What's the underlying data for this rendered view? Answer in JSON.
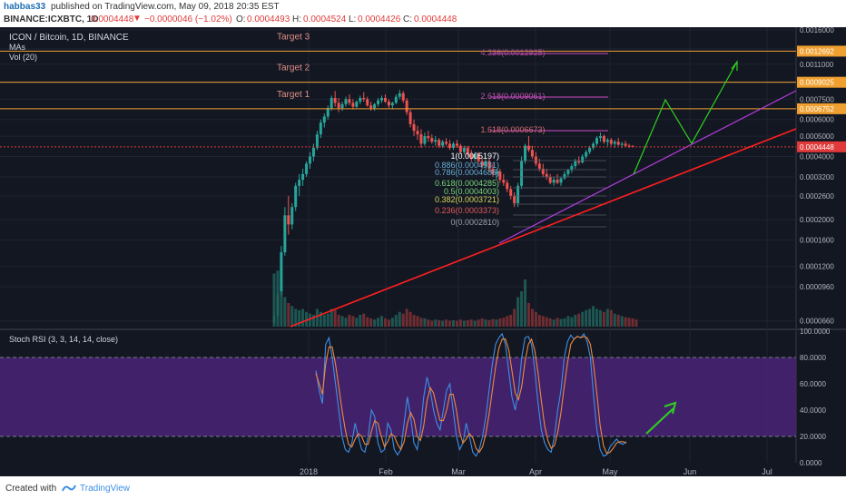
{
  "header": {
    "author": "habbas33",
    "published_text": "published on TradingView.com, May 09, 2018 20:35 EST",
    "symbol": "BINANCE:ICXBTC, 1D",
    "last": "0.0004448",
    "change_arrow": "▼",
    "change": "−0.0000046 (−1.02%)",
    "o_label": "O:",
    "o": "0.0004493",
    "h_label": "H:",
    "h": "0.0004524",
    "l_label": "L:",
    "l": "0.0004426",
    "c_label": "C:",
    "c": "0.0004448"
  },
  "legend": {
    "title": "ICON / Bitcoin, 1D, BINANCE",
    "mas": "MAs",
    "vol": "Vol (20)",
    "rsi": "Stoch RSI (3, 3, 14, 14, close)"
  },
  "footer": {
    "created_with": "Created with",
    "brand": "TradingView"
  },
  "colors": {
    "background": "#131722",
    "grid": "#1f2333",
    "up": "#26a69a",
    "down": "#ef5350",
    "target_line": "#f0a030",
    "trend_red": "#ff1f1f",
    "trend_purple": "#b43cdc",
    "projection": "#2ed11e",
    "k_line": "#3d8fe6",
    "d_line": "#f0883a",
    "rsi_band": "#4a2577",
    "last_price": "#e03a3a"
  },
  "chart_data": [
    {
      "type": "candlestick",
      "title": "ICON / Bitcoin, 1D, BINANCE",
      "x_ticks": [
        "2018",
        "Feb",
        "Mar",
        "Apr",
        "May",
        "Jun",
        "Jul"
      ],
      "y_ticks": [
        "0.0016000",
        "0.0013000",
        "0.0011000",
        "0.0009000",
        "0.0007500",
        "0.0006000",
        "0.0005000",
        "0.0004000",
        "0.0003200",
        "0.0002600",
        "0.0002000",
        "0.0001600",
        "0.0001200",
        "0.0000960",
        "0.0000660"
      ],
      "scale": "log",
      "price_markers": [
        {
          "value": "0.0012692",
          "label": "0.0012692"
        },
        {
          "value": "0.0009025",
          "label": "0.0009025"
        },
        {
          "value": "0.0006752",
          "label": "0.0006752"
        },
        {
          "value": "0.0004448",
          "label": "0.0004448"
        }
      ],
      "targets": [
        {
          "name": "Target 3",
          "value": 0.0012692
        },
        {
          "name": "Target 2",
          "value": 0.0009025
        },
        {
          "name": "Target 1",
          "value": 0.0006752
        }
      ],
      "fib_extension_labels": [
        "4.236(0.0012925)",
        "2.618(0.0009061)",
        "1.618(0.0006673)"
      ],
      "fib_retracement_labels": [
        "1(0.0005197)",
        "0.886(0.0004931)",
        "0.786(0.0004686)",
        "0.618(0.0004285)",
        "0.5(0.0004003)",
        "0.382(0.0003721)",
        "0.236(0.0003373)",
        "0(0.0002810)"
      ],
      "candles": [
        [
          6.5e-05,
          7.2e-05,
          6.4e-05,
          7e-05
        ],
        [
          7e-05,
          9e-05,
          6.9e-05,
          8.8e-05
        ],
        [
          8.8e-05,
          0.00015,
          8.6e-05,
          0.00014
        ],
        [
          0.00014,
          0.00023,
          0.000135,
          0.00021
        ],
        [
          0.00021,
          0.00026,
          0.00017,
          0.00019
        ],
        [
          0.00019,
          0.00024,
          0.00018,
          0.00023
        ],
        [
          0.00023,
          0.0003,
          0.00022,
          0.00029
        ],
        [
          0.00029,
          0.00033,
          0.00026,
          0.00031
        ],
        [
          0.00031,
          0.00035,
          0.00029,
          0.00033
        ],
        [
          0.00033,
          0.00038,
          0.00032,
          0.00037
        ],
        [
          0.00037,
          0.00042,
          0.00035,
          0.0004
        ],
        [
          0.0004,
          0.00046,
          0.00038,
          0.00044
        ],
        [
          0.00044,
          0.00053,
          0.00043,
          0.00051
        ],
        [
          0.00051,
          0.0006,
          0.00049,
          0.00058
        ],
        [
          0.00058,
          0.00064,
          0.00055,
          0.00062
        ],
        [
          0.00062,
          0.0007,
          0.0006,
          0.00068
        ],
        [
          0.00068,
          0.00078,
          0.00066,
          0.00076
        ],
        [
          0.00076,
          0.00082,
          0.00069,
          0.00072
        ],
        [
          0.00072,
          0.00076,
          0.00065,
          0.00068
        ],
        [
          0.00068,
          0.00073,
          0.00066,
          0.00071
        ],
        [
          0.00071,
          0.00077,
          0.00069,
          0.00075
        ],
        [
          0.00075,
          0.00079,
          0.0007,
          0.00072
        ],
        [
          0.00072,
          0.00075,
          0.00067,
          0.00069
        ],
        [
          0.00069,
          0.00074,
          0.00068,
          0.00073
        ],
        [
          0.00073,
          0.00078,
          0.00071,
          0.00076
        ],
        [
          0.00076,
          0.00081,
          0.00073,
          0.00075
        ],
        [
          0.00075,
          0.00077,
          0.00069,
          0.0007
        ],
        [
          0.0007,
          0.00073,
          0.00066,
          0.00068
        ],
        [
          0.00068,
          0.00072,
          0.00066,
          0.00071
        ],
        [
          0.00071,
          0.00076,
          0.00069,
          0.00074
        ],
        [
          0.00074,
          0.00078,
          0.00072,
          0.00076
        ],
        [
          0.00076,
          0.00079,
          0.00072,
          0.00073
        ],
        [
          0.00073,
          0.00075,
          0.00068,
          0.0007
        ],
        [
          0.0007,
          0.00073,
          0.00067,
          0.00072
        ],
        [
          0.00072,
          0.00079,
          0.00071,
          0.00077
        ],
        [
          0.00077,
          0.00083,
          0.00075,
          0.0008
        ],
        [
          0.0008,
          0.00082,
          0.00072,
          0.00074
        ],
        [
          0.00074,
          0.00076,
          0.00063,
          0.00065
        ],
        [
          0.00065,
          0.00067,
          0.00055,
          0.00057
        ],
        [
          0.00057,
          0.0006,
          0.0005,
          0.00053
        ],
        [
          0.00053,
          0.00056,
          0.00048,
          0.00051
        ],
        [
          0.00051,
          0.00054,
          0.00044,
          0.00046
        ],
        [
          0.00046,
          0.00052,
          0.00045,
          0.0005
        ],
        [
          0.0005,
          0.00053,
          0.00047,
          0.00049
        ],
        [
          0.00049,
          0.00051,
          0.00046,
          0.00047
        ],
        [
          0.00047,
          0.0005,
          0.00045,
          0.00048
        ],
        [
          0.00048,
          0.00049,
          0.00044,
          0.00045
        ],
        [
          0.00045,
          0.00048,
          0.00044,
          0.00047
        ],
        [
          0.00047,
          0.00049,
          0.00045,
          0.00046
        ],
        [
          0.00046,
          0.00048,
          0.00043,
          0.00044
        ],
        [
          0.00044,
          0.00047,
          0.00043,
          0.00046
        ],
        [
          0.00046,
          0.00048,
          0.00044,
          0.00045
        ],
        [
          0.00045,
          0.00046,
          0.00041,
          0.00042
        ],
        [
          0.00042,
          0.00045,
          0.00041,
          0.00044
        ],
        [
          0.00044,
          0.00045,
          0.0004,
          0.00041
        ],
        [
          0.00041,
          0.00043,
          0.00038,
          0.00039
        ],
        [
          0.00039,
          0.00042,
          0.00038,
          0.00041
        ],
        [
          0.00041,
          0.00042,
          0.00037,
          0.00038
        ],
        [
          0.00038,
          0.0004,
          0.00035,
          0.00036
        ],
        [
          0.00036,
          0.00039,
          0.00035,
          0.00038
        ],
        [
          0.00038,
          0.00039,
          0.00034,
          0.00035
        ],
        [
          0.00035,
          0.00037,
          0.00032,
          0.00033
        ],
        [
          0.00033,
          0.00035,
          0.00031,
          0.00034
        ],
        [
          0.00034,
          0.00035,
          0.0003,
          0.00031
        ],
        [
          0.00031,
          0.00033,
          0.00029,
          0.0003
        ],
        [
          0.0003,
          0.00031,
          0.00027,
          0.00028
        ],
        [
          0.00028,
          0.00029,
          0.00025,
          0.00026
        ],
        [
          0.00026,
          0.00027,
          0.00023,
          0.00024
        ],
        [
          0.00024,
          0.0003,
          0.00023,
          0.00029
        ],
        [
          0.00029,
          0.0004,
          0.00028,
          0.00038
        ],
        [
          0.00038,
          0.00046,
          0.00037,
          0.00045
        ],
        [
          0.00045,
          0.0005,
          0.00042,
          0.00043
        ],
        [
          0.00043,
          0.00045,
          0.00039,
          0.0004
        ],
        [
          0.0004,
          0.00042,
          0.00036,
          0.00037
        ],
        [
          0.00037,
          0.00039,
          0.00034,
          0.00035
        ],
        [
          0.00035,
          0.00037,
          0.00032,
          0.00033
        ],
        [
          0.00033,
          0.00035,
          0.00031,
          0.00032
        ],
        [
          0.00032,
          0.00033,
          0.000295,
          0.0003
        ],
        [
          0.0003,
          0.00032,
          0.00029,
          0.00031
        ],
        [
          0.00031,
          0.00033,
          0.000295,
          0.0003
        ],
        [
          0.0003,
          0.00032,
          0.00029,
          0.000315
        ],
        [
          0.000315,
          0.00034,
          0.00031,
          0.00033
        ],
        [
          0.00033,
          0.00035,
          0.00032,
          0.000345
        ],
        [
          0.000345,
          0.00037,
          0.000335,
          0.00036
        ],
        [
          0.00036,
          0.00039,
          0.00035,
          0.00038
        ],
        [
          0.00038,
          0.0004,
          0.000365,
          0.000375
        ],
        [
          0.000375,
          0.00041,
          0.00037,
          0.0004
        ],
        [
          0.0004,
          0.00043,
          0.00039,
          0.00042
        ],
        [
          0.00042,
          0.00045,
          0.00041,
          0.00044
        ],
        [
          0.00044,
          0.00047,
          0.00043,
          0.00046
        ],
        [
          0.00046,
          0.0005,
          0.00045,
          0.00049
        ],
        [
          0.00049,
          0.00052,
          0.00047,
          0.0005
        ],
        [
          0.0005,
          0.00051,
          0.00046,
          0.00047
        ],
        [
          0.00047,
          0.00049,
          0.00045,
          0.00048
        ],
        [
          0.00048,
          0.00049,
          0.00045,
          0.00046
        ],
        [
          0.00046,
          0.00048,
          0.00044,
          0.00047
        ],
        [
          0.00047,
          0.00049,
          0.00045,
          0.000455
        ],
        [
          0.000455,
          0.00047,
          0.00044,
          0.00046
        ],
        [
          0.00046,
          0.000475,
          0.000445,
          0.00045
        ],
        [
          0.00045,
          0.00046,
          0.00044,
          0.0004493
        ],
        [
          0.0004493,
          0.0004524,
          0.0004426,
          0.0004448
        ]
      ],
      "volumes": [
        0.9,
        0.95,
        0.6,
        0.5,
        0.4,
        0.35,
        0.3,
        0.28,
        0.3,
        0.25,
        0.22,
        0.2,
        0.3,
        0.25,
        0.2,
        0.22,
        0.3,
        0.28,
        0.2,
        0.18,
        0.15,
        0.2,
        0.18,
        0.15,
        0.2,
        0.22,
        0.16,
        0.14,
        0.12,
        0.15,
        0.18,
        0.14,
        0.12,
        0.15,
        0.2,
        0.25,
        0.22,
        0.3,
        0.25,
        0.2,
        0.18,
        0.15,
        0.14,
        0.12,
        0.1,
        0.12,
        0.11,
        0.1,
        0.12,
        0.1,
        0.11,
        0.1,
        0.12,
        0.1,
        0.11,
        0.12,
        0.1,
        0.12,
        0.14,
        0.12,
        0.11,
        0.13,
        0.12,
        0.14,
        0.15,
        0.18,
        0.2,
        0.3,
        0.5,
        0.6,
        0.8,
        0.4,
        0.3,
        0.25,
        0.2,
        0.18,
        0.16,
        0.14,
        0.12,
        0.15,
        0.13,
        0.14,
        0.18,
        0.16,
        0.2,
        0.22,
        0.25,
        0.28,
        0.3,
        0.35,
        0.3,
        0.28,
        0.25,
        0.3,
        0.28,
        0.22,
        0.2,
        0.18,
        0.16,
        0.15,
        0.14,
        0.12
      ]
    },
    {
      "type": "line",
      "title": "Stoch RSI (3, 3, 14, 14, close)",
      "y_ticks": [
        "100.0000",
        "80.0000",
        "60.0000",
        "40.0000",
        "20.0000",
        "0.0000"
      ],
      "ylim": [
        0,
        100
      ],
      "band": [
        20,
        80
      ],
      "series": [
        {
          "name": "K",
          "values": [
            70,
            55,
            45,
            90,
            95,
            80,
            60,
            40,
            20,
            10,
            8,
            15,
            30,
            20,
            10,
            8,
            20,
            40,
            35,
            15,
            8,
            10,
            30,
            25,
            10,
            6,
            10,
            30,
            50,
            35,
            15,
            10,
            25,
            50,
            65,
            55,
            40,
            30,
            25,
            40,
            55,
            60,
            40,
            20,
            10,
            15,
            30,
            20,
            8,
            5,
            10,
            20,
            35,
            55,
            75,
            90,
            95,
            98,
            90,
            70,
            50,
            40,
            55,
            80,
            95,
            96,
            90,
            70,
            45,
            25,
            15,
            10,
            8,
            20,
            40,
            55,
            80,
            92,
            97,
            94,
            96,
            95,
            98,
            92,
            80,
            50,
            25,
            10,
            5,
            6,
            12,
            15,
            18,
            15,
            14,
            16
          ]
        },
        {
          "name": "D",
          "values": [
            68,
            60,
            52,
            75,
            88,
            88,
            75,
            58,
            40,
            25,
            14,
            12,
            18,
            22,
            20,
            14,
            14,
            24,
            32,
            30,
            20,
            12,
            16,
            22,
            20,
            14,
            10,
            16,
            30,
            38,
            33,
            20,
            17,
            28,
            47,
            57,
            53,
            42,
            32,
            32,
            40,
            52,
            52,
            40,
            23,
            15,
            18,
            22,
            19,
            11,
            8,
            12,
            22,
            37,
            55,
            73,
            87,
            94,
            94,
            86,
            70,
            53,
            48,
            58,
            77,
            90,
            94,
            85,
            68,
            47,
            28,
            17,
            11,
            13,
            23,
            38,
            58,
            76,
            90,
            94,
            96,
            95,
            96,
            95,
            90,
            74,
            52,
            28,
            13,
            7,
            8,
            11,
            15,
            16,
            16,
            15
          ]
        }
      ]
    }
  ]
}
